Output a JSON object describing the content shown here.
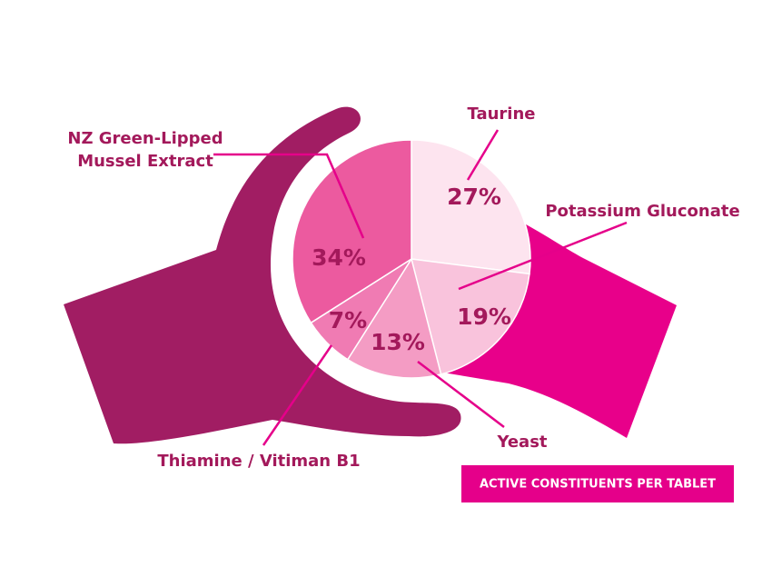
{
  "chart_data": {
    "type": "pie",
    "title": "ACTIVE CONSTITUENTS PER TABLET",
    "categories": [
      "Taurine",
      "Potassium Gluconate",
      "Yeast",
      "Thiamine / Vitiman B1",
      "NZ Green-Lipped Mussel Extract"
    ],
    "values": [
      27,
      19,
      13,
      7,
      34
    ],
    "value_labels": [
      "27%",
      "19%",
      "13%",
      "7%",
      "34%"
    ],
    "colors": [
      "#fde4ef",
      "#f9c3dc",
      "#f49cc4",
      "#f07bb3",
      "#ec5a9f"
    ]
  }
}
